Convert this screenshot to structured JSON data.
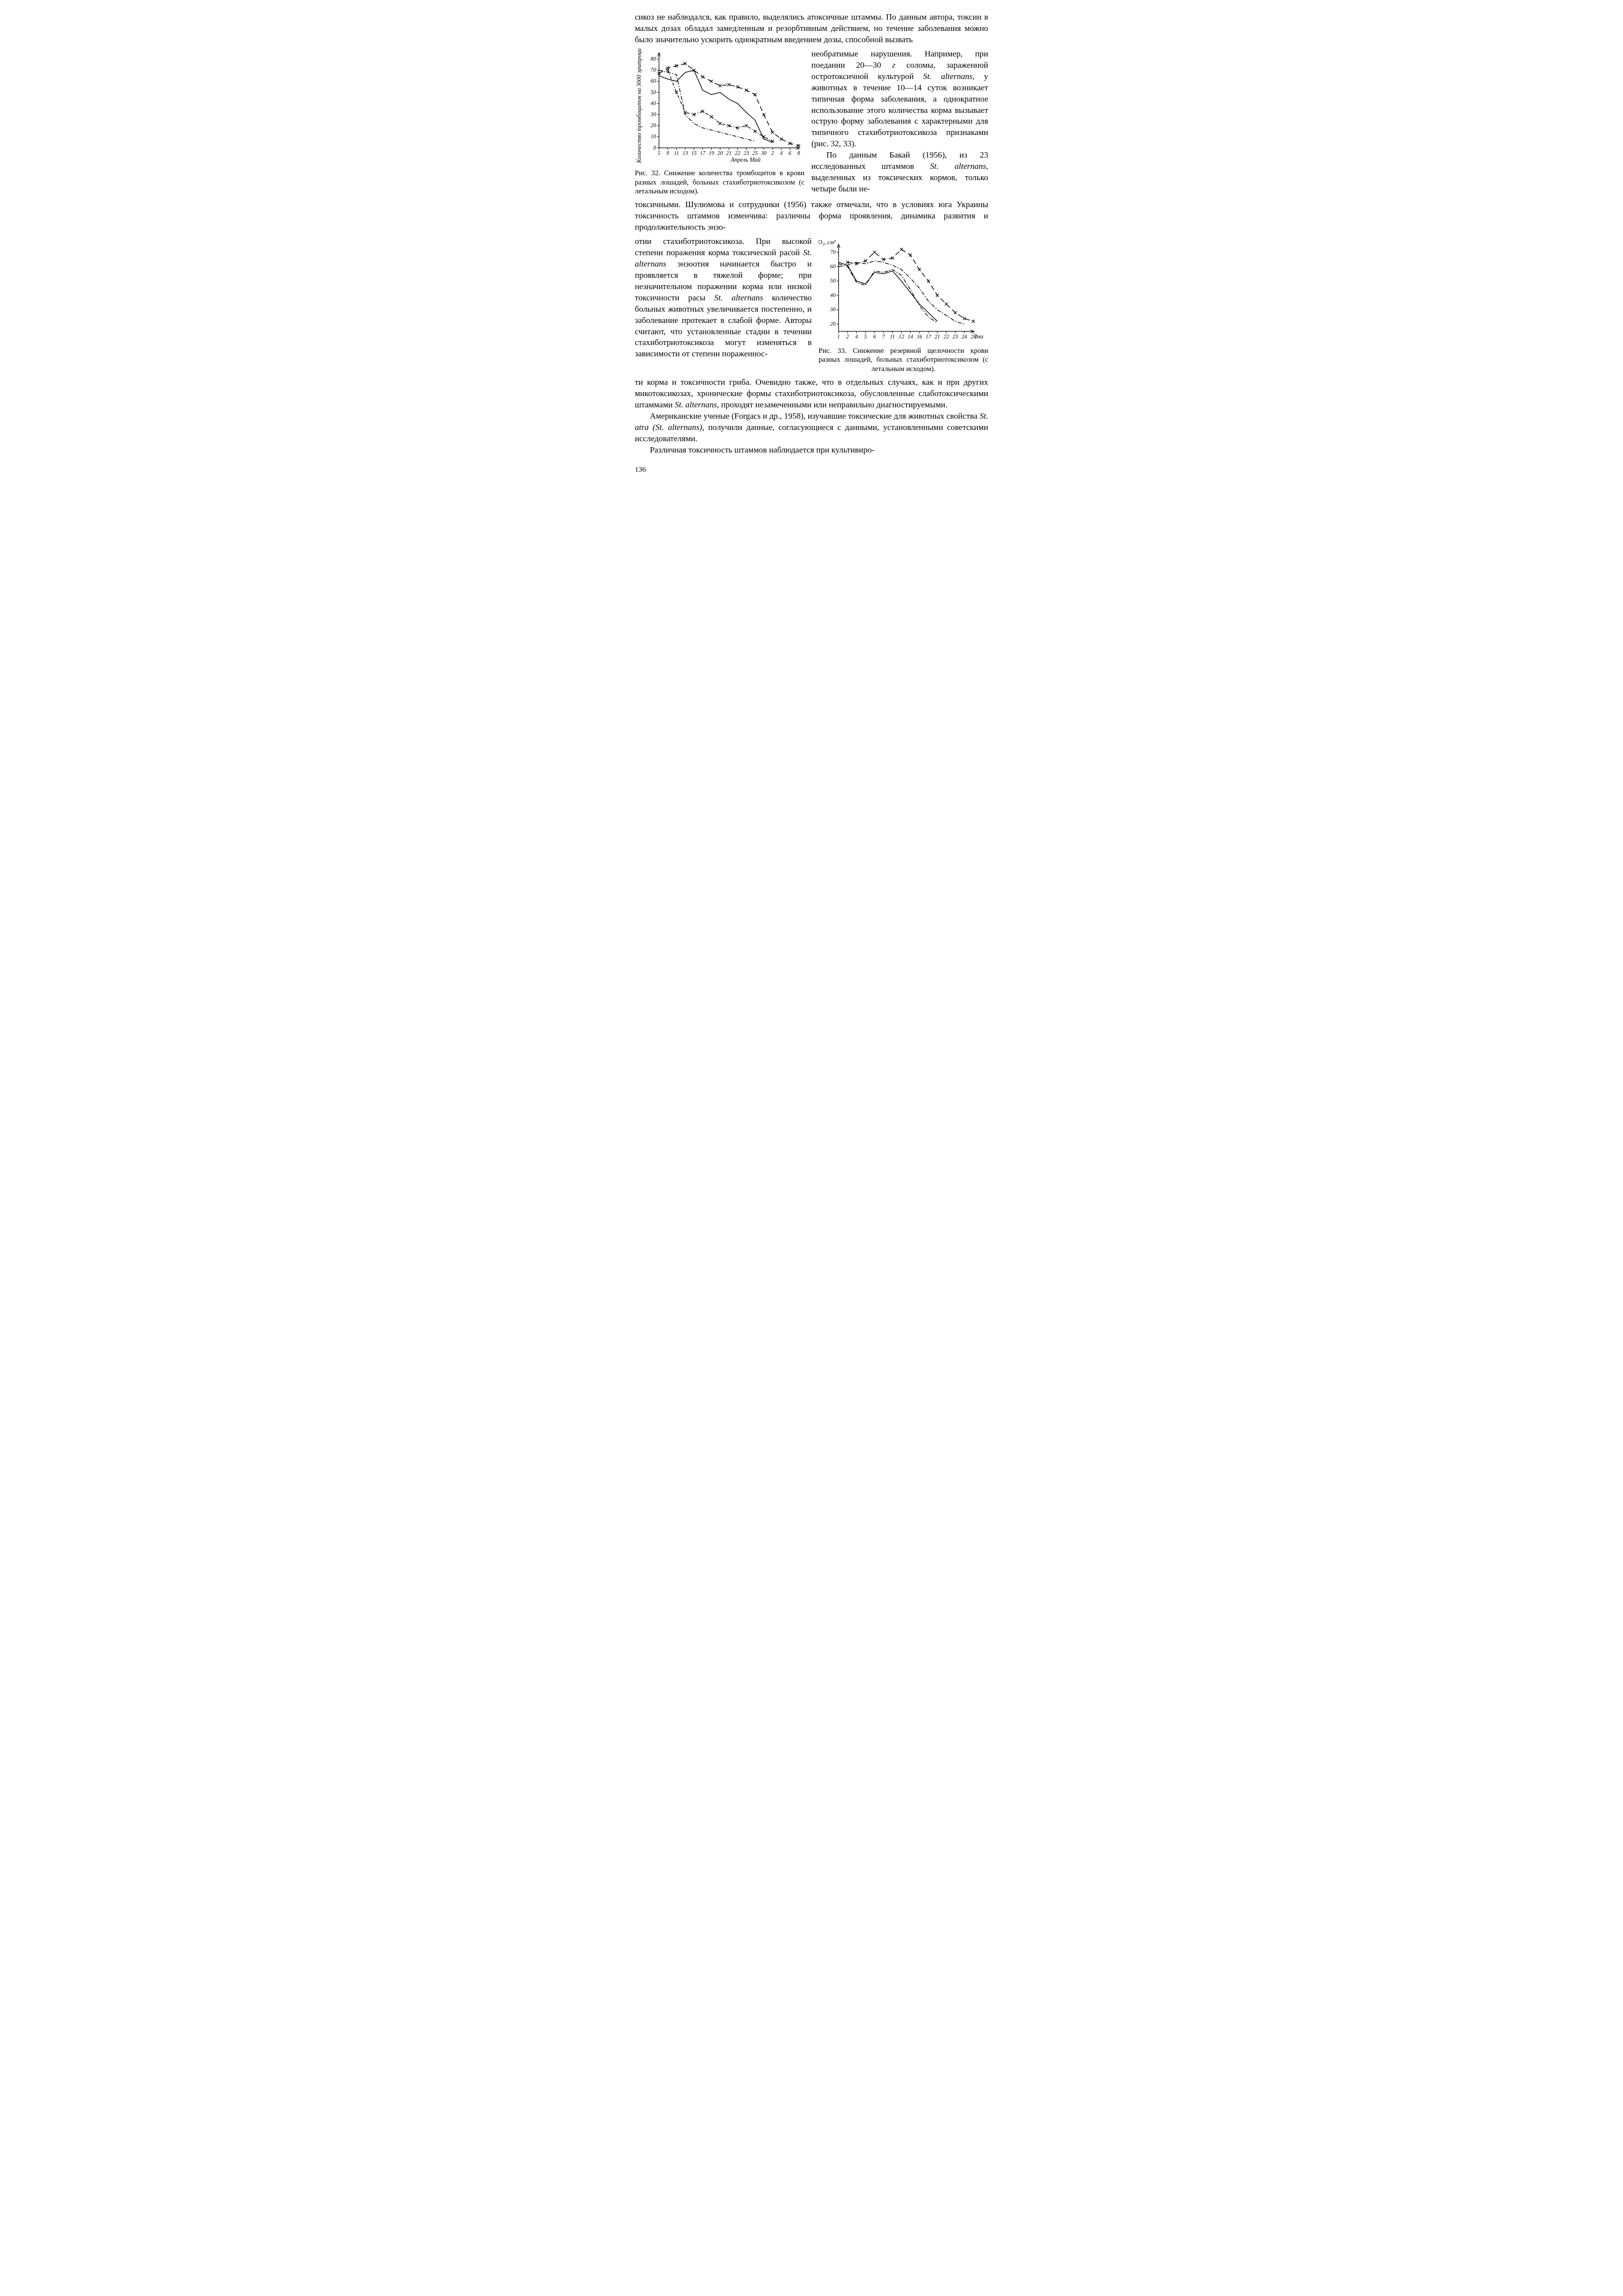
{
  "para1": "сикоз не наблюдался, как правило, выделялись атоксичные штаммы. По данным автора, токсин в малых дозах обладал замедленным и резорбтивным действием, но течение заболевания можно было значительно ускорить однократным введением дозы, способной вызвать",
  "sideText1_a": "необратимые нарушения. Например, при поедании 20—30 ",
  "sideText1_a_italic": "г",
  "sideText1_b": " соломы, зараженной остротоксичной культурой ",
  "sideText1_b_italic": "St. alternans,",
  "sideText1_c": " у животных в течение 10—14 суток возникает типичная форма заболевания, а однократное использование этого количества корма вызывает острую форму заболевания с характерными для типичного стахиботриотоксикоза признаками (рис. 32, 33).",
  "sideText1_d": "По данным Бакай (1956), из 23 исследованных штаммов ",
  "sideText1_d_italic": "St. alternans,",
  "sideText1_e": " выделенных из токсических кормов, только четыре были не-",
  "fig32_caption": "Рис. 32. Снижение количества тромбоцитов в крови разных лошадей, больных стахиботриотоксикозом (с летальным исходом).",
  "para2": "токсичными. Шулюмова и сотрудники (1956) также отмечали, что в условиях юга Украины токсичность штаммов изменчива: различны форма проявления, динамика развития и продолжительность энзо-",
  "sideText2_a": "отии стахиботриотоксикоза. При высокой степени поражения корма токсической расой ",
  "sideText2_a_italic": "St. alternans",
  "sideText2_b": " энзоотия начинается быстро и проявляется в тяжелой форме; при незначительном поражении корма или низкой токсичности расы ",
  "sideText2_b_italic": "St. alternans",
  "sideText2_c": " количество больных животных увеличивается постепенно, и заболевание протекает в слабой форме. Авторы считают, что установленные стадии в течении стахиботриотоксикоза могут изменяться в зависимости от степени пораженнос-",
  "fig33_caption": "Рис. 33. Снижение резервной щелочности крови разных лошадей, больных стахиботриотоксикозом (с летальным исходом).",
  "para3_a": "ти корма и токсичности гриба. Очевидно также, что в отдельных случаях, как и при других микотоксикозах, хронические формы стахиботриотоксикоза, обусловленные слаботоксическими штаммами ",
  "para3_italic": "St. alternans,",
  "para3_b": " проходят незамеченными или неправильно диагностируемыми.",
  "para4_a": "Американские ученые (Forgacs и др., 1958), изучавшие токсические для животных свойства ",
  "para4_italic": "St. atra (St. alternans),",
  "para4_b": " получили данные, согласующиеся с данными, установленными советскими исследователями.",
  "para5": "Различная токсичность штаммов наблюдается при культивиро-",
  "pageNum": "136",
  "fig32": {
    "type": "line",
    "ylabel": "Количество тромбоцитов на 3000 эритроцитов",
    "y_ticks": [
      0,
      10,
      20,
      30,
      40,
      50,
      60,
      70,
      80
    ],
    "x_ticks": [
      "5",
      "9",
      "11",
      "13",
      "15",
      "17",
      "19",
      "20",
      "21",
      "22",
      "23",
      "25",
      "30",
      "2",
      "4",
      "6",
      "8"
    ],
    "x_axis_label": "Апрель  Май",
    "ylim": [
      0,
      85
    ],
    "background_color": "#ffffff",
    "axis_color": "#000000",
    "stroke_width": 1.4,
    "series": [
      {
        "style": "solid",
        "marker": "none",
        "points": [
          [
            0,
            65
          ],
          [
            1,
            62
          ],
          [
            2,
            60
          ],
          [
            3,
            68
          ],
          [
            4,
            70
          ],
          [
            5,
            52
          ],
          [
            6,
            48
          ],
          [
            7,
            50
          ],
          [
            8,
            44
          ],
          [
            9,
            40
          ],
          [
            10,
            32
          ],
          [
            11,
            25
          ],
          [
            12,
            8
          ],
          [
            13,
            5
          ]
        ]
      },
      {
        "style": "dash-dot",
        "marker": "none",
        "points": [
          [
            0,
            70
          ],
          [
            1,
            68
          ],
          [
            2,
            66
          ],
          [
            3,
            30
          ],
          [
            4,
            22
          ],
          [
            5,
            18
          ],
          [
            6,
            16
          ],
          [
            7,
            14
          ],
          [
            8,
            12
          ],
          [
            9,
            10
          ],
          [
            10,
            8
          ],
          [
            11,
            6
          ]
        ]
      },
      {
        "style": "dash-x",
        "marker": "x",
        "points": [
          [
            0,
            67
          ],
          [
            1,
            72
          ],
          [
            2,
            74
          ],
          [
            3,
            76
          ],
          [
            4,
            70
          ],
          [
            5,
            64
          ],
          [
            6,
            60
          ],
          [
            7,
            56
          ],
          [
            8,
            57
          ],
          [
            9,
            55
          ],
          [
            10,
            52
          ],
          [
            11,
            48
          ],
          [
            12,
            30
          ],
          [
            13,
            14
          ],
          [
            14,
            8
          ],
          [
            15,
            4
          ],
          [
            16,
            2
          ]
        ]
      },
      {
        "style": "dash-dot-x",
        "marker": "x",
        "points": [
          [
            1,
            70
          ],
          [
            2,
            50
          ],
          [
            3,
            32
          ],
          [
            4,
            30
          ],
          [
            5,
            33
          ],
          [
            6,
            28
          ],
          [
            7,
            22
          ],
          [
            8,
            20
          ],
          [
            9,
            18
          ],
          [
            10,
            20
          ],
          [
            11,
            15
          ],
          [
            12,
            10
          ],
          [
            13,
            6
          ]
        ]
      }
    ]
  },
  "fig33": {
    "type": "line",
    "ylabel_top": "CO₂, см³",
    "y_ticks": [
      20,
      30,
      40,
      50,
      60,
      70
    ],
    "x_ticks": [
      "1",
      "2",
      "4",
      "5",
      "6",
      "7",
      "11",
      "12",
      "14",
      "16",
      "17",
      "21",
      "22",
      "23",
      "24",
      "25"
    ],
    "x_axis_label": "дни",
    "ylim": [
      15,
      75
    ],
    "background_color": "#ffffff",
    "axis_color": "#000000",
    "stroke_width": 1.4,
    "series": [
      {
        "style": "solid",
        "marker": "none",
        "points": [
          [
            0,
            63
          ],
          [
            1,
            61
          ],
          [
            2,
            50
          ],
          [
            3,
            48
          ],
          [
            4,
            56
          ],
          [
            5,
            55
          ],
          [
            6,
            57
          ],
          [
            7,
            50
          ],
          [
            8,
            42
          ],
          [
            9,
            34
          ],
          [
            10,
            28
          ],
          [
            11,
            22
          ]
        ]
      },
      {
        "style": "dash-dot",
        "marker": "none",
        "points": [
          [
            0,
            62
          ],
          [
            1,
            60
          ],
          [
            2,
            49
          ],
          [
            3,
            47
          ],
          [
            4,
            57
          ],
          [
            5,
            56
          ],
          [
            6,
            58
          ],
          [
            7,
            54
          ],
          [
            8,
            44
          ],
          [
            9,
            33
          ],
          [
            10,
            25
          ],
          [
            11,
            21
          ]
        ]
      },
      {
        "style": "dash-x",
        "marker": "x",
        "points": [
          [
            1,
            63
          ],
          [
            2,
            62
          ],
          [
            3,
            64
          ],
          [
            4,
            70
          ],
          [
            5,
            65
          ],
          [
            6,
            66
          ],
          [
            7,
            72
          ],
          [
            8,
            68
          ],
          [
            9,
            58
          ],
          [
            10,
            50
          ],
          [
            11,
            40
          ],
          [
            12,
            34
          ],
          [
            13,
            28
          ],
          [
            14,
            24
          ],
          [
            15,
            22
          ]
        ]
      },
      {
        "style": "dash-dot",
        "marker": "none",
        "points": [
          [
            0,
            60
          ],
          [
            1,
            61
          ],
          [
            2,
            63
          ],
          [
            3,
            62
          ],
          [
            4,
            64
          ],
          [
            5,
            63
          ],
          [
            6,
            61
          ],
          [
            7,
            58
          ],
          [
            8,
            52
          ],
          [
            9,
            45
          ],
          [
            10,
            36
          ],
          [
            11,
            30
          ],
          [
            12,
            26
          ],
          [
            13,
            22
          ],
          [
            14,
            20
          ]
        ]
      }
    ]
  }
}
